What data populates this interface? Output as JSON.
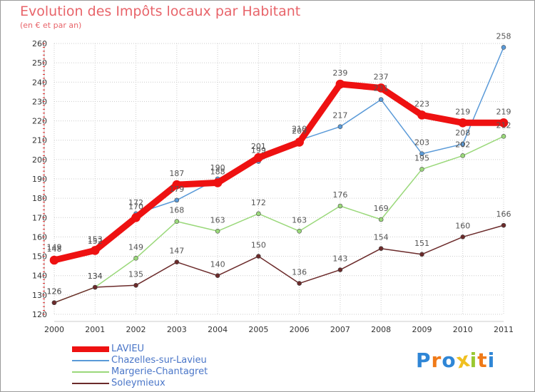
{
  "chart_data": {
    "type": "line",
    "title": "Evolution des Impôts locaux par Habitant",
    "subtitle": "(en € et par an)",
    "xlabel": "",
    "ylabel": "",
    "categories": [
      "2000",
      "2001",
      "2002",
      "2003",
      "2004",
      "2005",
      "2006",
      "2007",
      "2008",
      "2009",
      "2010",
      "2011"
    ],
    "ylim": [
      120,
      260
    ],
    "yticks": [
      "120",
      "130",
      "140",
      "150",
      "160",
      "170",
      "180",
      "190",
      "200",
      "210",
      "220",
      "230",
      "240",
      "250",
      "260"
    ],
    "grid": true,
    "legend_position": "bottom-left",
    "series": [
      {
        "name": "LAVIEU",
        "color": "#ee1111",
        "values": [
          148,
          153,
          170,
          187,
          188,
          201,
          209,
          239,
          237,
          223,
          219,
          219
        ],
        "labels": [
          "148",
          "153",
          "170",
          "187",
          "188",
          "201",
          "209",
          "239",
          "237",
          "223",
          "219",
          "219"
        ]
      },
      {
        "name": "Chazelles-sur-Lavieu",
        "color": "#5a9ad8",
        "values": [
          149,
          152,
          172,
          179,
          190,
          199,
          210,
          217,
          231,
          203,
          208,
          258
        ],
        "labels": [
          "149",
          "152",
          "172",
          "179",
          "190",
          "199",
          "210",
          "217",
          "231",
          "203",
          "208",
          "258"
        ]
      },
      {
        "name": "Margerie-Chantagret",
        "color": "#9ad87a",
        "values": [
          126,
          134,
          149,
          168,
          163,
          172,
          163,
          176,
          169,
          195,
          202,
          212
        ],
        "labels": [
          "126",
          "134",
          "149",
          "168",
          "163",
          "172",
          "163",
          "176",
          "169",
          "195",
          "202",
          "212"
        ]
      },
      {
        "name": "Soleymieux",
        "color": "#6b2a2a",
        "values": [
          126,
          134,
          135,
          147,
          140,
          150,
          136,
          143,
          154,
          151,
          160,
          166
        ],
        "labels": [
          "126",
          "134",
          "135",
          "147",
          "140",
          "150",
          "136",
          "143",
          "154",
          "151",
          "160",
          "166"
        ]
      }
    ]
  },
  "brand": {
    "letters": [
      "P",
      "r",
      "o",
      "x",
      "i",
      "t",
      "i"
    ],
    "colors": [
      "#2f86d6",
      "#f07a18",
      "#2f86d6",
      "#f0c020",
      "#9ac830",
      "#f07a18",
      "#2f86d6"
    ]
  }
}
